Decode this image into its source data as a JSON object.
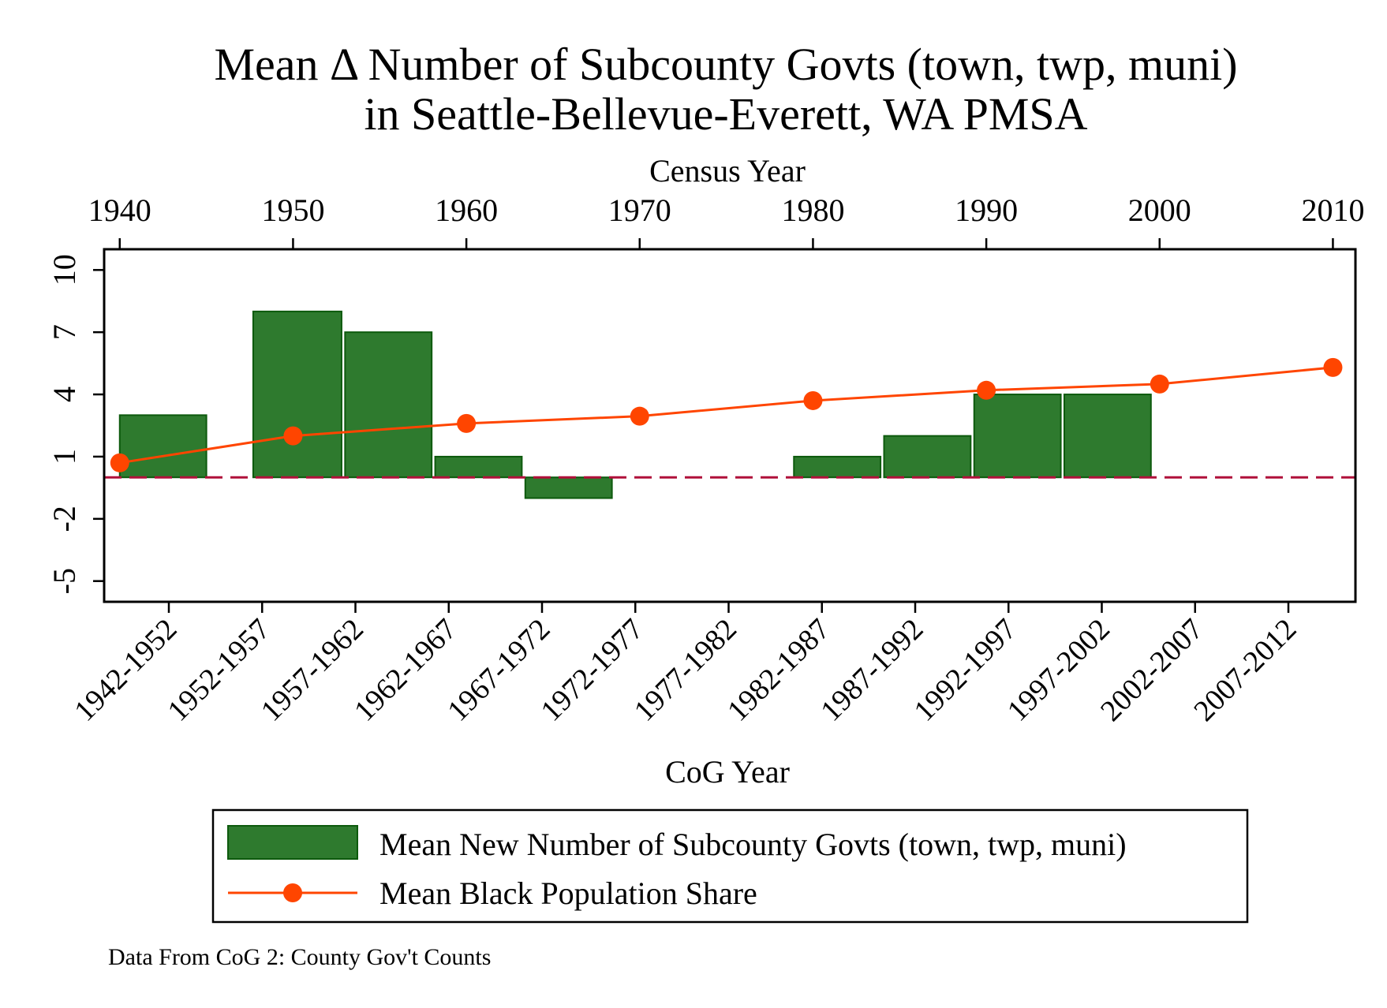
{
  "chart_data": {
    "type": "bar",
    "title": [
      "Mean Δ Number of Subcounty Govts (town, twp, muni)",
      "in Seattle-Bellevue-Everett, WA PMSA"
    ],
    "top_axis": {
      "label": "Census Year",
      "ticks": [
        1940,
        1950,
        1960,
        1970,
        1980,
        1990,
        2000,
        2010
      ],
      "range": [
        1939.1,
        2011.3
      ]
    },
    "xlabel": "CoG Year",
    "categories": [
      "1942-1952",
      "1952-1957",
      "1957-1962",
      "1962-1967",
      "1967-1972",
      "1972-1977",
      "1977-1982",
      "1982-1987",
      "1987-1992",
      "1992-1997",
      "1997-2002",
      "2002-2007",
      "2007-2012"
    ],
    "ylim": [
      -6,
      11
    ],
    "yticks": [
      -5,
      -2,
      1,
      4,
      7,
      10
    ],
    "reference_line": {
      "y": 0,
      "color": "#b0103a",
      "style": "dashed"
    },
    "series": [
      {
        "name": "Mean New Number of Subcounty Govts (town, twp, muni)",
        "type": "bar",
        "color": "#2e7a2e",
        "edge_color": "#0d5a0d",
        "bars": [
          {
            "x_start": 1940,
            "x_end": 1945,
            "value": 3
          },
          {
            "x_start": 1947.7,
            "x_end": 1952.8,
            "value": 8
          },
          {
            "x_start": 1953,
            "x_end": 1958,
            "value": 7
          },
          {
            "x_start": 1958.2,
            "x_end": 1963.2,
            "value": 1
          },
          {
            "x_start": 1963.4,
            "x_end": 1968.4,
            "value": -1
          },
          {
            "x_start": 1978.9,
            "x_end": 1983.9,
            "value": 1
          },
          {
            "x_start": 1984.1,
            "x_end": 1989.1,
            "value": 2
          },
          {
            "x_start": 1989.3,
            "x_end": 1994.3,
            "value": 4
          },
          {
            "x_start": 1994.5,
            "x_end": 1999.5,
            "value": 4
          }
        ]
      },
      {
        "name": "Mean Black Population Share",
        "type": "line",
        "color": "#ff4500",
        "x": [
          1940,
          1950,
          1960,
          1970,
          1980,
          1990,
          2000,
          2010
        ],
        "values": [
          0.7,
          2.0,
          2.6,
          2.95,
          3.7,
          4.2,
          4.5,
          5.3
        ]
      }
    ],
    "note": "Data From CoG 2: County Gov't Counts",
    "legend_position": "bottom"
  }
}
